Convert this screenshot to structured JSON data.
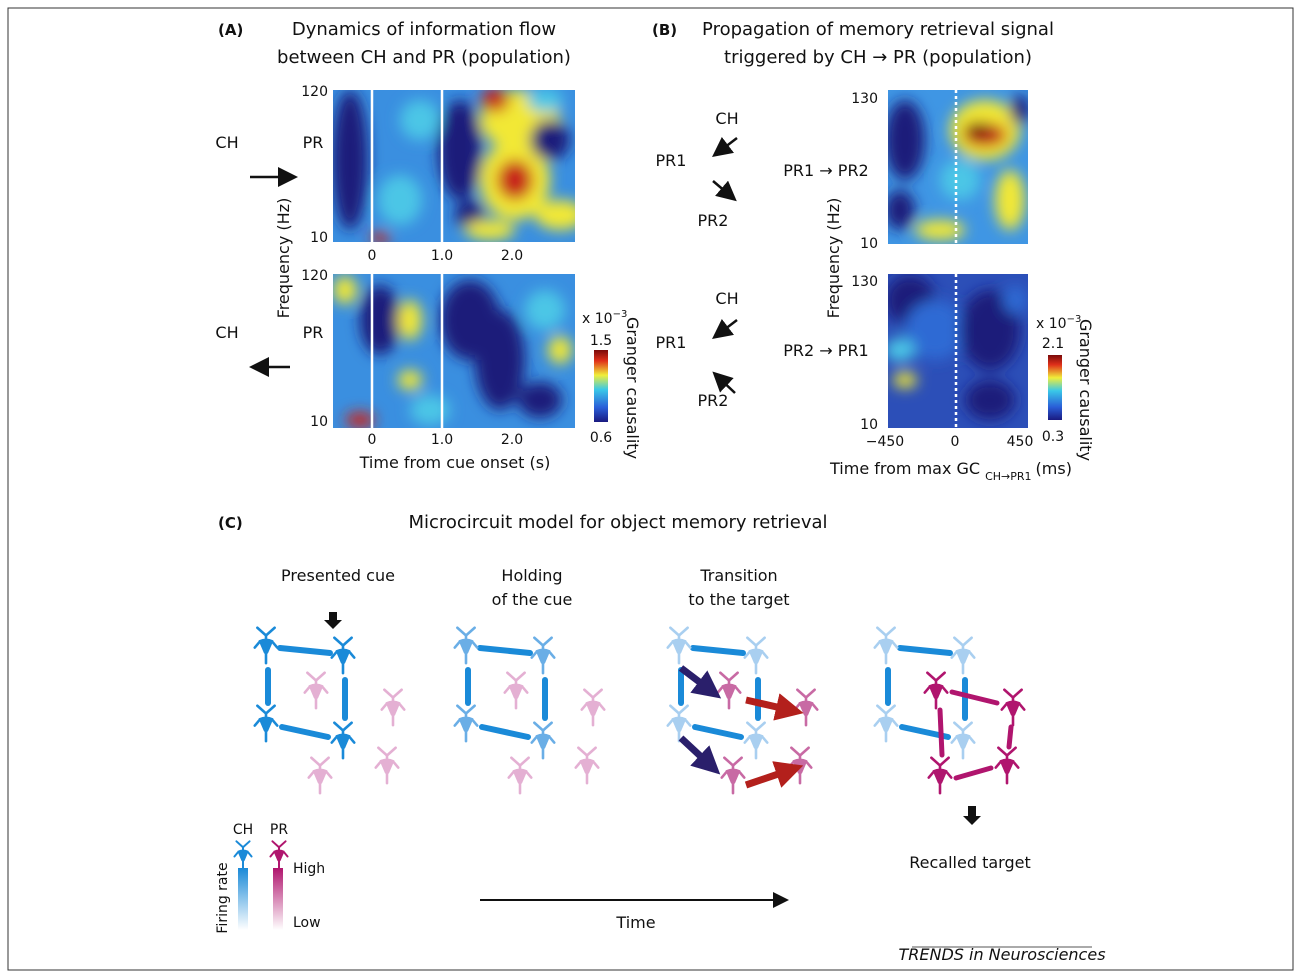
{
  "panel_a": {
    "label": "(A)",
    "title": [
      "Dynamics of information flow",
      "between CH and PR (population)"
    ],
    "top": {
      "neurons": [
        "CH",
        "PR"
      ],
      "yticks": [
        "120",
        "10"
      ],
      "xticks": [
        "0",
        "1.0",
        "2.0"
      ]
    },
    "bottom": {
      "neurons": [
        "CH",
        "PR"
      ],
      "yticks": [
        "120",
        "10"
      ],
      "xticks": [
        "0",
        "1.0",
        "2.0"
      ]
    },
    "y_label": "Frequency (Hz)",
    "x_label": "Time from cue onset (s)",
    "colorbar": {
      "unit": "x 10",
      "exponent": "−3",
      "max": "1.5",
      "min": "0.6",
      "label": "Granger causality"
    }
  },
  "panel_b": {
    "label": "(B)",
    "title": [
      "Propagation of memory retrieval signal",
      "triggered by CH → PR (population)"
    ],
    "top": {
      "neurons": [
        "CH",
        "PR1",
        "PR2"
      ],
      "direction": "PR1 → PR2",
      "yticks": [
        "130",
        "10"
      ]
    },
    "bottom": {
      "neurons": [
        "CH",
        "PR1",
        "PR2"
      ],
      "direction": "PR2 → PR1",
      "yticks": [
        "130",
        "10"
      ]
    },
    "xticks": [
      "−450",
      "0",
      "450"
    ],
    "y_label": "Frequency (Hz)",
    "x_label": {
      "text": "Time from max GC",
      "subscript": "CH→PR1",
      "unit": "(ms)"
    },
    "colorbar": {
      "unit": "x 10",
      "exponent": "−3",
      "max": "2.1",
      "min": "0.3",
      "label": "Granger causality"
    }
  },
  "panel_c": {
    "label": "(C)",
    "title": "Microcircuit model for object memory retrieval",
    "stages": [
      [
        "Presented cue"
      ],
      [
        "Holding",
        "of the cue"
      ],
      [
        "Transition",
        "to the target"
      ],
      [
        "Recalled target"
      ]
    ],
    "legend": {
      "neurons": [
        "CH",
        "PR"
      ],
      "axis": "Firing rate",
      "high": "High",
      "low": "Low"
    },
    "time": "Time"
  },
  "footer": "TRENDS in Neurosciences"
}
